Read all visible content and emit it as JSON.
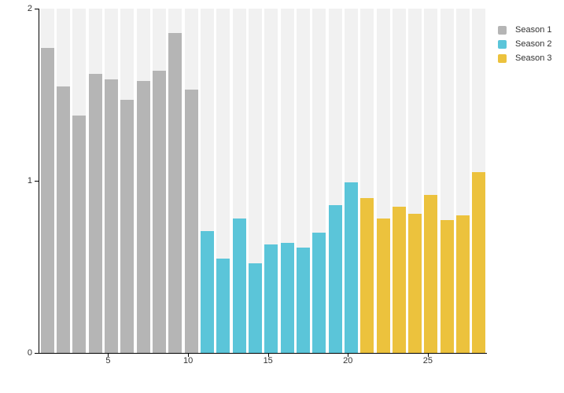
{
  "chart_data": {
    "type": "bar",
    "title": "",
    "xlabel": "",
    "ylabel": "",
    "x_range": [
      1,
      28
    ],
    "ylim": [
      0,
      2
    ],
    "yticks": [
      0,
      1,
      2
    ],
    "xticks": [
      5,
      10,
      15,
      20,
      25
    ],
    "grid": false,
    "legend_position": "top-right",
    "background_stripe_color": "#f1f1f1",
    "axis_color": "#000000",
    "text_color": "#333333",
    "series": [
      {
        "name": "Season 1",
        "color": "#b5b5b5",
        "x_start": 1,
        "values": [
          1.77,
          1.55,
          1.38,
          1.62,
          1.59,
          1.47,
          1.58,
          1.64,
          1.86,
          1.53
        ]
      },
      {
        "name": "Season 2",
        "color": "#5bc5d9",
        "x_start": 11,
        "values": [
          0.71,
          0.55,
          0.78,
          0.52,
          0.63,
          0.64,
          0.61,
          0.7,
          0.86,
          0.99
        ]
      },
      {
        "name": "Season 3",
        "color": "#ecc23d",
        "x_start": 21,
        "values": [
          0.9,
          0.78,
          0.85,
          0.81,
          0.92,
          0.77,
          0.8,
          1.05
        ]
      }
    ]
  }
}
